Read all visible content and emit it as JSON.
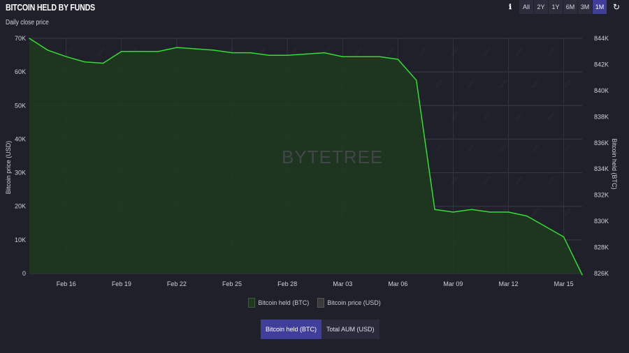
{
  "header": {
    "title": "BITCOIN HELD BY FUNDS",
    "subtitle": "Daily close price",
    "range_buttons": [
      "All",
      "2Y",
      "1Y",
      "6M",
      "3M",
      "1M"
    ],
    "active_range": "1M",
    "info_icon": "info-icon",
    "refresh_icon": "refresh-icon"
  },
  "chart_data": {
    "type": "area",
    "watermark": "BYTETREE",
    "x_ticks": [
      "Feb 16",
      "Feb 19",
      "Feb 22",
      "Feb 25",
      "Feb 28",
      "Mar 03",
      "Mar 06",
      "Mar 09",
      "Mar 12",
      "Mar 15"
    ],
    "y_left": {
      "label": "Bitcoin price (USD)",
      "ticks": [
        "0",
        "10K",
        "20K",
        "30K",
        "40K",
        "50K",
        "60K",
        "70K"
      ],
      "range": [
        0,
        70000
      ]
    },
    "y_right": {
      "label": "Bitcoin held (BTC)",
      "ticks": [
        "826K",
        "828K",
        "830K",
        "832K",
        "834K",
        "836K",
        "838K",
        "840K",
        "842K",
        "844K"
      ],
      "range": [
        826000,
        844000
      ]
    },
    "series": [
      {
        "name": "Bitcoin held (BTC)",
        "color": "#33dd33",
        "x": [
          "Feb 14",
          "Feb 15",
          "Feb 16",
          "Feb 17",
          "Feb 18",
          "Feb 19",
          "Feb 20",
          "Feb 21",
          "Feb 22",
          "Feb 23",
          "Feb 24",
          "Feb 25",
          "Feb 26",
          "Feb 27",
          "Feb 28",
          "Mar 01",
          "Mar 02",
          "Mar 03",
          "Mar 04",
          "Mar 05",
          "Mar 06",
          "Mar 07",
          "Mar 08",
          "Mar 09",
          "Mar 10",
          "Mar 11",
          "Mar 12",
          "Mar 13",
          "Mar 14",
          "Mar 15",
          "Mar 16"
        ],
        "values": [
          844000,
          843100,
          842600,
          842200,
          842100,
          843000,
          843000,
          843000,
          843300,
          843200,
          843100,
          842900,
          842900,
          842700,
          842700,
          842800,
          842900,
          842600,
          842600,
          842600,
          842400,
          840800,
          830900,
          830700,
          830900,
          830700,
          830700,
          830400,
          829600,
          828800,
          825900
        ]
      },
      {
        "name": "Bitcoin price (USD)",
        "color": "#555555",
        "values": []
      }
    ],
    "grid": true
  },
  "legend": [
    {
      "label": "Bitcoin held (BTC)",
      "color": "#1d3a1d"
    },
    {
      "label": "Bitcoin price (USD)",
      "color": "#444444"
    }
  ],
  "switch": {
    "options": [
      "Bitcoin held (BTC)",
      "Total AUM (USD)"
    ],
    "active": "Bitcoin held (BTC)"
  }
}
